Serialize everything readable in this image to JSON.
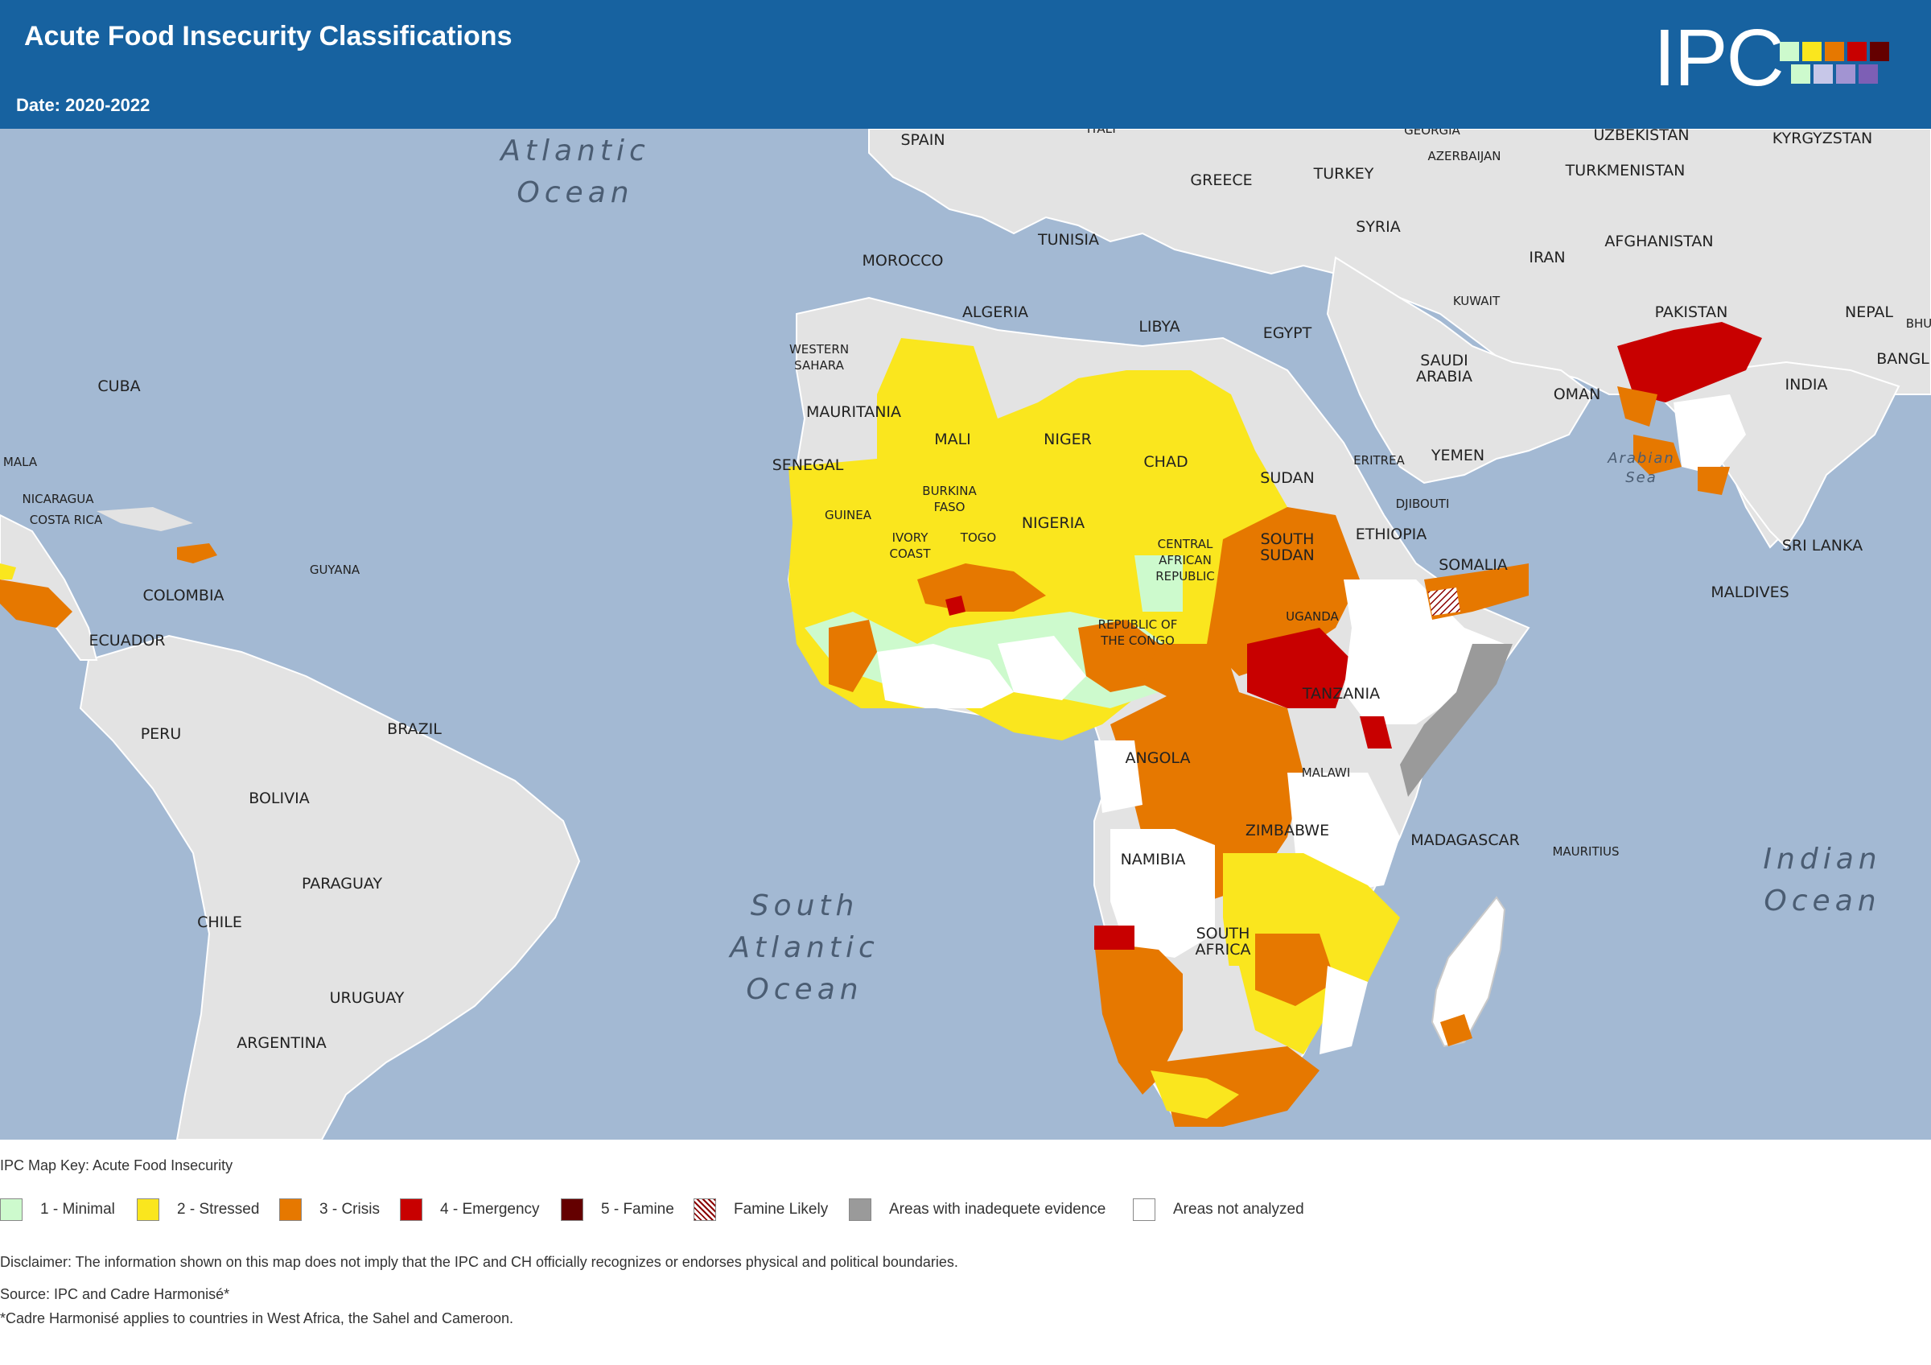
{
  "header": {
    "title": "Acute Food Insecurity Classifications",
    "date": "Date: 2020-2022",
    "logo_text": "IPC",
    "logo_colors": [
      "#cdfacd",
      "#fae61e",
      "#e67800",
      "#c80000",
      "#640000",
      "#cdfacd",
      "#c7c7e8",
      "#a294d2",
      "#7d5fb5"
    ]
  },
  "map": {
    "background_color": "#a3b9d3",
    "country_labels": [
      "SPAIN",
      "ITALY",
      "GEORGIA",
      "AZERBAIJAN",
      "UZBEKISTAN",
      "KYRGYZSTAN",
      "TURKMENISTAN",
      "GREECE",
      "TURKEY",
      "MOROCCO",
      "TUNISIA",
      "SYRIA",
      "IRAN",
      "AFGHANISTAN",
      "ALGERIA",
      "LIBYA",
      "EGYPT",
      "KUWAIT",
      "PAKISTAN",
      "NEPAL",
      "BHU",
      "BANGL",
      "WESTERN SAHARA",
      "SAUDI ARABIA",
      "OMAN",
      "INDIA",
      "CUBA",
      "MAURITANIA",
      "MALI",
      "NIGER",
      "CHAD",
      "SUDAN",
      "ERITREA",
      "YEMEN",
      "SENEGAL",
      "MALA",
      "NICARAGUA",
      "COSTA RICA",
      "BURKINA FASO",
      "DJIBOUTI",
      "GUINEA",
      "IVORY COAST",
      "TOGO",
      "NIGERIA",
      "CENTRAL AFRICAN REPUBLIC",
      "SOUTH SUDAN",
      "ETHIOPIA",
      "SOMALIA",
      "SRI LANKA",
      "GUYANA",
      "COLOMBIA",
      "MALDIVES",
      "ECUADOR",
      "UGANDA",
      "REPUBLIC OF THE CONGO",
      "TANZANIA",
      "PERU",
      "BRAZIL",
      "ANGOLA",
      "MALAWI",
      "BOLIVIA",
      "ZIMBABWE",
      "MADAGASCAR",
      "MAURITIUS",
      "NAMIBIA",
      "PARAGUAY",
      "CHILE",
      "SOUTH AFRICA",
      "URUGUAY",
      "ARGENTINA"
    ],
    "ocean_labels": [
      "Atlantic Ocean",
      "South Atlantic Ocean",
      "Indian Ocean",
      "Arabian Sea"
    ]
  },
  "legend": {
    "key_title": "IPC Map Key: Acute Food Insecurity",
    "items": [
      {
        "label": "1 - Minimal",
        "color": "#cdfacd"
      },
      {
        "label": "2 - Stressed",
        "color": "#fae61e"
      },
      {
        "label": "3 - Crisis",
        "color": "#e67800"
      },
      {
        "label": "4 - Emergency",
        "color": "#c80000"
      },
      {
        "label": "5 - Famine",
        "color": "#640000"
      },
      {
        "label": "Famine Likely",
        "color": "hatched"
      },
      {
        "label": "Areas with inadequete evidence",
        "color": "#9a9a9a"
      },
      {
        "label": "Areas not analyzed",
        "color": "#ffffff"
      }
    ]
  },
  "footer": {
    "disclaimer": "Disclaimer: The information shown on this map does not imply that the IPC and CH officially recognizes or endorses physical and political boundaries.",
    "source": "Source: IPC and Cadre Harmonisé*",
    "note": "*Cadre Harmonisé applies to countries in West Africa, the Sahel and Cameroon."
  }
}
